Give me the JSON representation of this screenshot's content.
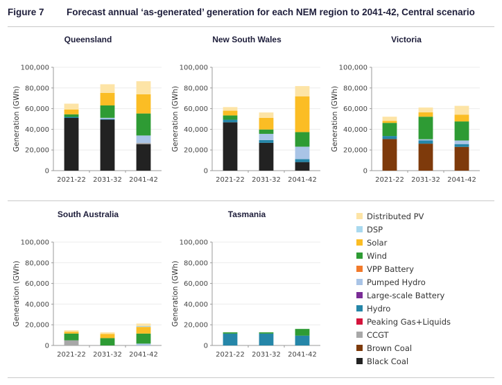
{
  "figure": {
    "number": "Figure 7",
    "title": "Forecast annual ‘as-generated’ generation for each NEM region to 2041-42, Central scenario"
  },
  "colors": {
    "Distributed PV": "#fde4a6",
    "DSP": "#a9d9ef",
    "Solar": "#fbbd24",
    "Wind": "#2e9b34",
    "VPP Battery": "#f27a2b",
    "Pumped Hydro": "#a9c4e6",
    "Large-scale Battery": "#7a2c96",
    "Hydro": "#2586a8",
    "Peaking Gas+Liquids": "#d4143c",
    "CCGT": "#a8a8a8",
    "Brown Coal": "#7e3a0b",
    "Black Coal": "#222222"
  },
  "legend": {
    "items": [
      "Distributed PV",
      "DSP",
      "Solar",
      "Wind",
      "VPP Battery",
      "Pumped Hydro",
      "Large-scale Battery",
      "Hydro",
      "Peaking Gas+Liquids",
      "CCGT",
      "Brown Coal",
      "Black Coal"
    ]
  },
  "chart_data": [
    {
      "type": "bar",
      "stacked": true,
      "title": "Queensland",
      "categories": [
        "2021-22",
        "2031-32",
        "2041-42"
      ],
      "ylabel": "Generation (GWh)",
      "xlabel": "",
      "ylim": [
        0,
        100000
      ],
      "yticks": [
        0,
        20000,
        40000,
        60000,
        80000,
        100000
      ],
      "ytick_labels": [
        "0",
        "20,000",
        "40,000",
        "60,000",
        "80,000",
        "100,000"
      ],
      "grid": true,
      "series": [
        {
          "name": "Black Coal",
          "values": [
            51000,
            49300,
            25700
          ]
        },
        {
          "name": "Brown Coal",
          "values": [
            0,
            0,
            0
          ]
        },
        {
          "name": "CCGT",
          "values": [
            0,
            0,
            1200
          ]
        },
        {
          "name": "Peaking Gas+Liquids",
          "values": [
            0,
            0,
            0
          ]
        },
        {
          "name": "Hydro",
          "values": [
            1000,
            600,
            0
          ]
        },
        {
          "name": "Large-scale Battery",
          "values": [
            0,
            0,
            0
          ]
        },
        {
          "name": "Pumped Hydro",
          "values": [
            0,
            1200,
            7100
          ]
        },
        {
          "name": "VPP Battery",
          "values": [
            0,
            0,
            0
          ]
        },
        {
          "name": "Wind",
          "values": [
            2500,
            12000,
            21300
          ]
        },
        {
          "name": "Solar",
          "values": [
            4700,
            12100,
            18600
          ]
        },
        {
          "name": "DSP",
          "values": [
            0,
            0,
            0
          ]
        },
        {
          "name": "Distributed PV",
          "values": [
            5600,
            8400,
            12600
          ]
        }
      ]
    },
    {
      "type": "bar",
      "stacked": true,
      "title": "New South Wales",
      "categories": [
        "2021-22",
        "2031-32",
        "2041-42"
      ],
      "ylabel": "Generation (GWh)",
      "xlabel": "",
      "ylim": [
        0,
        100000
      ],
      "yticks": [
        0,
        20000,
        40000,
        60000,
        80000,
        100000
      ],
      "ytick_labels": [
        "0",
        "20,000",
        "40,000",
        "60,000",
        "80,000",
        "100,000"
      ],
      "grid": true,
      "series": [
        {
          "name": "Black Coal",
          "values": [
            46800,
            26900,
            8300
          ]
        },
        {
          "name": "Brown Coal",
          "values": [
            0,
            0,
            0
          ]
        },
        {
          "name": "CCGT",
          "values": [
            0,
            0,
            0
          ]
        },
        {
          "name": "Peaking Gas+Liquids",
          "values": [
            0,
            0,
            0
          ]
        },
        {
          "name": "Hydro",
          "values": [
            2500,
            2700,
            2900
          ]
        },
        {
          "name": "Large-scale Battery",
          "values": [
            0,
            0,
            0
          ]
        },
        {
          "name": "Pumped Hydro",
          "values": [
            0,
            6000,
            12000
          ]
        },
        {
          "name": "VPP Battery",
          "values": [
            0,
            0,
            0
          ]
        },
        {
          "name": "Wind",
          "values": [
            4100,
            4200,
            14100
          ]
        },
        {
          "name": "Solar",
          "values": [
            4600,
            11300,
            34500
          ]
        },
        {
          "name": "DSP",
          "values": [
            0,
            0,
            0
          ]
        },
        {
          "name": "Distributed PV",
          "values": [
            3500,
            5200,
            10000
          ]
        }
      ]
    },
    {
      "type": "bar",
      "stacked": true,
      "title": "Victoria",
      "categories": [
        "2021-22",
        "2031-32",
        "2041-42"
      ],
      "ylabel": "Generation (GWh)",
      "xlabel": "",
      "ylim": [
        0,
        100000
      ],
      "yticks": [
        0,
        20000,
        40000,
        60000,
        80000,
        100000
      ],
      "ytick_labels": [
        "0",
        "20,000",
        "40,000",
        "60,000",
        "80,000",
        "100,000"
      ],
      "grid": true,
      "series": [
        {
          "name": "Black Coal",
          "values": [
            0,
            0,
            0
          ]
        },
        {
          "name": "Brown Coal",
          "values": [
            30600,
            26100,
            23000
          ]
        },
        {
          "name": "CCGT",
          "values": [
            0,
            0,
            0
          ]
        },
        {
          "name": "Peaking Gas+Liquids",
          "values": [
            0,
            0,
            0
          ]
        },
        {
          "name": "Hydro",
          "values": [
            2900,
            3100,
            2700
          ]
        },
        {
          "name": "Large-scale Battery",
          "values": [
            0,
            0,
            0
          ]
        },
        {
          "name": "Pumped Hydro",
          "values": [
            0,
            1200,
            3500
          ]
        },
        {
          "name": "VPP Battery",
          "values": [
            0,
            0,
            0
          ]
        },
        {
          "name": "Wind",
          "values": [
            12700,
            21800,
            18400
          ]
        },
        {
          "name": "Solar",
          "values": [
            2000,
            4300,
            6600
          ]
        },
        {
          "name": "DSP",
          "values": [
            0,
            0,
            0
          ]
        },
        {
          "name": "Distributed PV",
          "values": [
            4000,
            4600,
            8500
          ]
        }
      ]
    },
    {
      "type": "bar",
      "stacked": true,
      "title": "South Australia",
      "categories": [
        "2021-22",
        "2031-32",
        "2041-42"
      ],
      "ylabel": "Generation (GWh)",
      "xlabel": "",
      "ylim": [
        0,
        100000
      ],
      "yticks": [
        0,
        20000,
        40000,
        60000,
        80000,
        100000
      ],
      "ytick_labels": [
        "0",
        "20,000",
        "40,000",
        "60,000",
        "80,000",
        "100,000"
      ],
      "grid": true,
      "series": [
        {
          "name": "Black Coal",
          "values": [
            0,
            0,
            0
          ]
        },
        {
          "name": "Brown Coal",
          "values": [
            0,
            0,
            0
          ]
        },
        {
          "name": "CCGT",
          "values": [
            5000,
            0,
            0
          ]
        },
        {
          "name": "Peaking Gas+Liquids",
          "values": [
            0,
            0,
            0
          ]
        },
        {
          "name": "Hydro",
          "values": [
            0,
            0,
            0
          ]
        },
        {
          "name": "Large-scale Battery",
          "values": [
            0,
            0,
            0
          ]
        },
        {
          "name": "Pumped Hydro",
          "values": [
            0,
            0,
            1800
          ]
        },
        {
          "name": "VPP Battery",
          "values": [
            0,
            0,
            0
          ]
        },
        {
          "name": "Wind",
          "values": [
            6500,
            7100,
            9700
          ]
        },
        {
          "name": "Solar",
          "values": [
            1800,
            4000,
            6500
          ]
        },
        {
          "name": "DSP",
          "values": [
            0,
            0,
            800
          ]
        },
        {
          "name": "Distributed PV",
          "values": [
            1400,
            1600,
            2400
          ]
        }
      ]
    },
    {
      "type": "bar",
      "stacked": true,
      "title": "Tasmania",
      "categories": [
        "2021-22",
        "2031-32",
        "2041-42"
      ],
      "ylabel": "Generation (GWh)",
      "xlabel": "",
      "ylim": [
        0,
        100000
      ],
      "yticks": [
        0,
        20000,
        40000,
        60000,
        80000,
        100000
      ],
      "ytick_labels": [
        "0",
        "20,000",
        "40,000",
        "60,000",
        "80,000",
        "100,000"
      ],
      "grid": true,
      "series": [
        {
          "name": "Black Coal",
          "values": [
            0,
            0,
            0
          ]
        },
        {
          "name": "Brown Coal",
          "values": [
            0,
            0,
            0
          ]
        },
        {
          "name": "CCGT",
          "values": [
            0,
            0,
            0
          ]
        },
        {
          "name": "Peaking Gas+Liquids",
          "values": [
            0,
            0,
            0
          ]
        },
        {
          "name": "Hydro",
          "values": [
            11500,
            11500,
            9500
          ]
        },
        {
          "name": "Large-scale Battery",
          "values": [
            0,
            0,
            0
          ]
        },
        {
          "name": "Pumped Hydro",
          "values": [
            0,
            0,
            0
          ]
        },
        {
          "name": "VPP Battery",
          "values": [
            0,
            0,
            0
          ]
        },
        {
          "name": "Wind",
          "values": [
            1200,
            1200,
            6500
          ]
        },
        {
          "name": "Solar",
          "values": [
            0,
            0,
            0
          ]
        },
        {
          "name": "DSP",
          "values": [
            0,
            0,
            0
          ]
        },
        {
          "name": "Distributed PV",
          "values": [
            0,
            0,
            0
          ]
        }
      ]
    }
  ]
}
